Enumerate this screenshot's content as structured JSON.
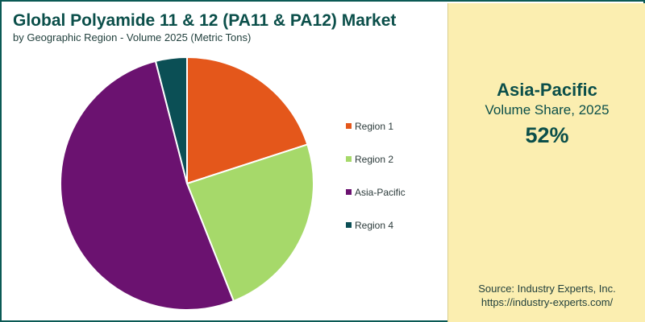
{
  "chart_data": {
    "type": "pie",
    "title": "Global Polyamide 11 & 12 (PA11 & PA12) Market",
    "subtitle": "by Geographic Region - Volume 2025 (Metric Tons)",
    "categories": [
      "Region 1",
      "Region 2",
      "Asia-Pacific",
      "Region 4"
    ],
    "values": [
      20,
      24,
      52,
      4
    ],
    "colors": [
      "#e4571b",
      "#a6d96a",
      "#6b1270",
      "#0b4f55"
    ],
    "legend_position": "right"
  },
  "highlight": {
    "region": "Asia-Pacific",
    "metric": "Volume Share, 2025",
    "value": "52%"
  },
  "source": {
    "line1": "Source: Industry Experts, Inc.",
    "line2": "https://industry-experts.com/"
  }
}
